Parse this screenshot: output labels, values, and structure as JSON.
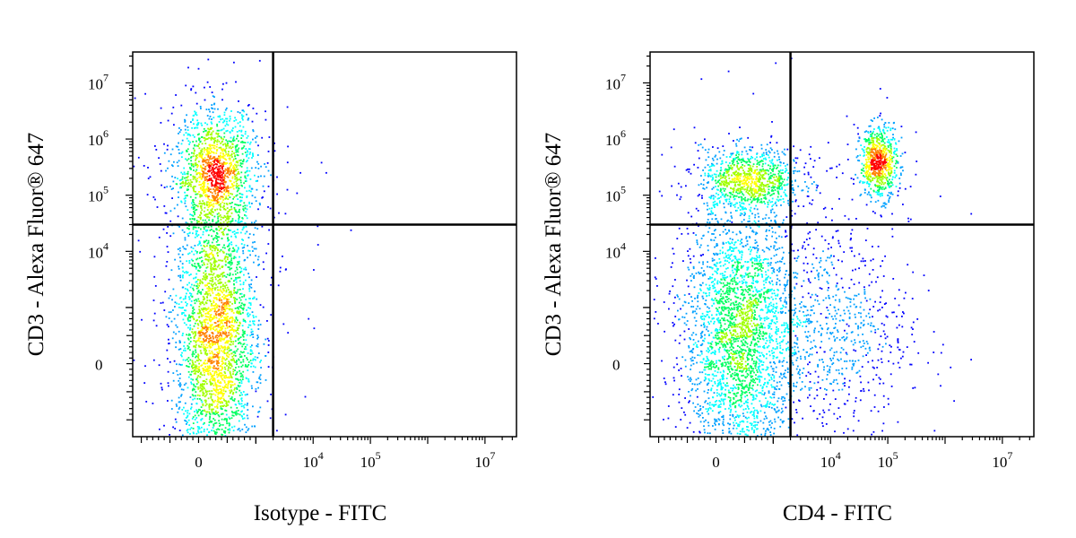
{
  "chart_data": [
    {
      "type": "scatter",
      "subtype": "flow-cytometry-density-plot",
      "xlabel": "Isotype - FITC",
      "ylabel": "CD3 - Alexa Fluor® 647",
      "x_scale": "biexponential",
      "y_scale": "biexponential",
      "x_ticks": [
        {
          "value": 0,
          "base": "0",
          "exp": ""
        },
        {
          "value": 10000,
          "base": "10",
          "exp": "4"
        },
        {
          "value": 100000,
          "base": "10",
          "exp": "5"
        },
        {
          "value": 10000000,
          "base": "10",
          "exp": "7"
        }
      ],
      "y_ticks": [
        {
          "value": 0,
          "base": "0",
          "exp": ""
        },
        {
          "value": 10000,
          "base": "10",
          "exp": "4"
        },
        {
          "value": 100000,
          "base": "10",
          "exp": "5"
        },
        {
          "value": 1000000,
          "base": "10",
          "exp": "6"
        },
        {
          "value": 10000000,
          "base": "10",
          "exp": "7"
        }
      ],
      "gates": {
        "x": 2000,
        "y": 30000
      },
      "populations": [
        {
          "x": 300,
          "y": 250000,
          "sx": 0.11,
          "sy": 0.17,
          "count": 1300
        },
        {
          "x": 300,
          "y": 450,
          "sx": 0.11,
          "sy": 0.38,
          "count": 2600
        }
      ],
      "sparse_events": [
        {
          "x": 6000,
          "y": 250000
        },
        {
          "x": 14000,
          "y": 380000
        },
        {
          "x": 17000,
          "y": 250000
        },
        {
          "x": 9000,
          "y": 30000
        },
        {
          "x": 12000,
          "y": 28000
        },
        {
          "x": 20000,
          "y": 30000
        }
      ],
      "density_colormap": [
        "#0000ff",
        "#00a0ff",
        "#00ffff",
        "#00ff60",
        "#a0ff00",
        "#ffff00",
        "#ff8000",
        "#ff0000"
      ]
    },
    {
      "type": "scatter",
      "subtype": "flow-cytometry-density-plot",
      "xlabel": "CD4 - FITC",
      "ylabel": "CD3 - Alexa Fluor® 647",
      "x_scale": "biexponential",
      "y_scale": "biexponential",
      "x_ticks": [
        {
          "value": 0,
          "base": "0",
          "exp": ""
        },
        {
          "value": 10000,
          "base": "10",
          "exp": "4"
        },
        {
          "value": 100000,
          "base": "10",
          "exp": "5"
        },
        {
          "value": 10000000,
          "base": "10",
          "exp": "7"
        }
      ],
      "y_ticks": [
        {
          "value": 0,
          "base": "0",
          "exp": ""
        },
        {
          "value": 10000,
          "base": "10",
          "exp": "4"
        },
        {
          "value": 100000,
          "base": "10",
          "exp": "5"
        },
        {
          "value": 1000000,
          "base": "10",
          "exp": "6"
        },
        {
          "value": 10000000,
          "base": "10",
          "exp": "7"
        }
      ],
      "gates": {
        "x": 2000,
        "y": 30000
      },
      "populations": [
        {
          "x": 600,
          "y": 180000,
          "sx": 0.14,
          "sy": 0.09,
          "count": 900
        },
        {
          "x": 70000,
          "y": 380000,
          "sx": 0.05,
          "sy": 0.1,
          "count": 650
        },
        {
          "x": 400,
          "y": 500,
          "sx": 0.15,
          "sy": 0.36,
          "count": 2700
        },
        {
          "x": 9000,
          "y": 600,
          "sx": 0.22,
          "sy": 0.3,
          "count": 750
        }
      ],
      "sparse_events": [
        {
          "x": 30000,
          "y": 500000
        },
        {
          "x": 20000,
          "y": 800000
        },
        {
          "x": 50000,
          "y": 30000
        },
        {
          "x": 120000,
          "y": 25000
        },
        {
          "x": 150000,
          "y": 400
        },
        {
          "x": -200,
          "y": -300
        }
      ],
      "density_colormap": [
        "#0000ff",
        "#00a0ff",
        "#00ffff",
        "#00ff60",
        "#a0ff00",
        "#ffff00",
        "#ff8000",
        "#ff0000"
      ]
    }
  ]
}
